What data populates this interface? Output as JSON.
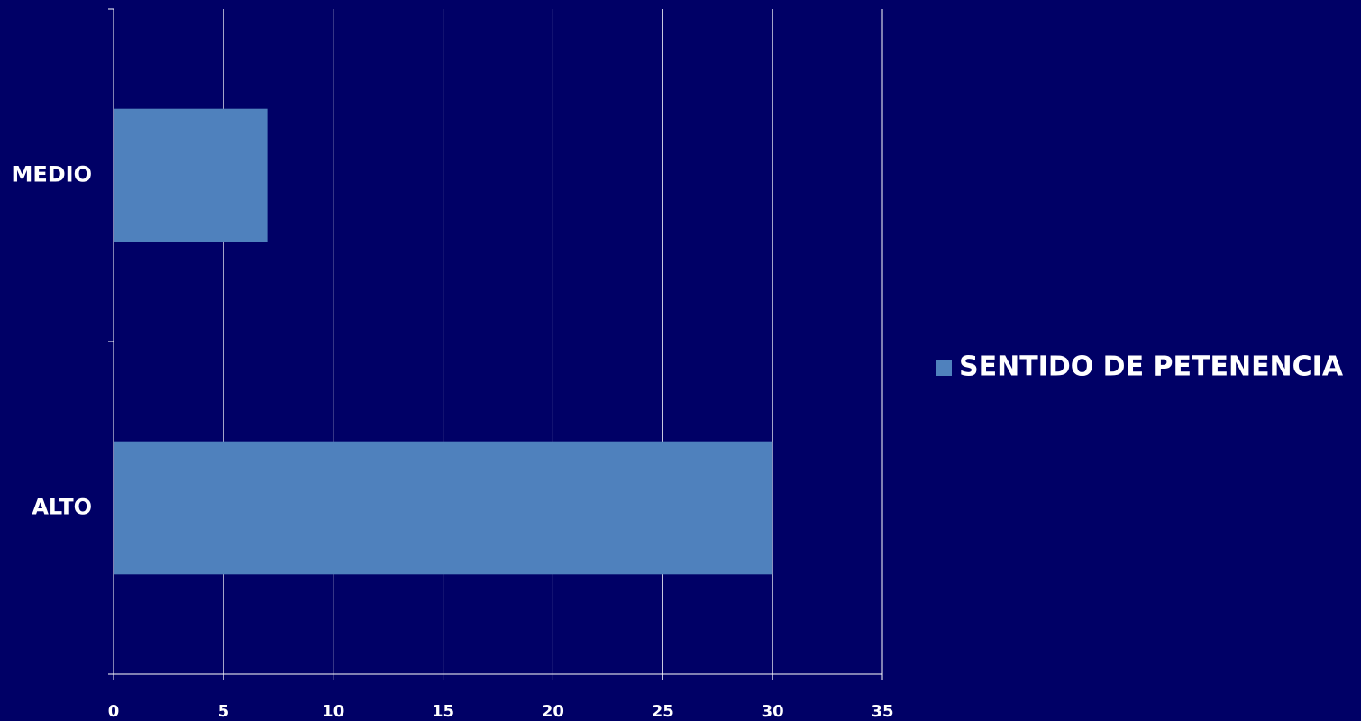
{
  "chart_data": {
    "type": "bar",
    "orientation": "horizontal",
    "categories": [
      "MEDIO",
      "ALTO"
    ],
    "series": [
      {
        "name": "SENTIDO DE PETENENCIA",
        "color": "#4f81bd",
        "values": [
          7,
          30
        ]
      }
    ],
    "xlim": [
      0,
      35
    ],
    "xticks": [
      0,
      5,
      10,
      15,
      20,
      25,
      30,
      35
    ],
    "grid": true,
    "legend": "right"
  }
}
